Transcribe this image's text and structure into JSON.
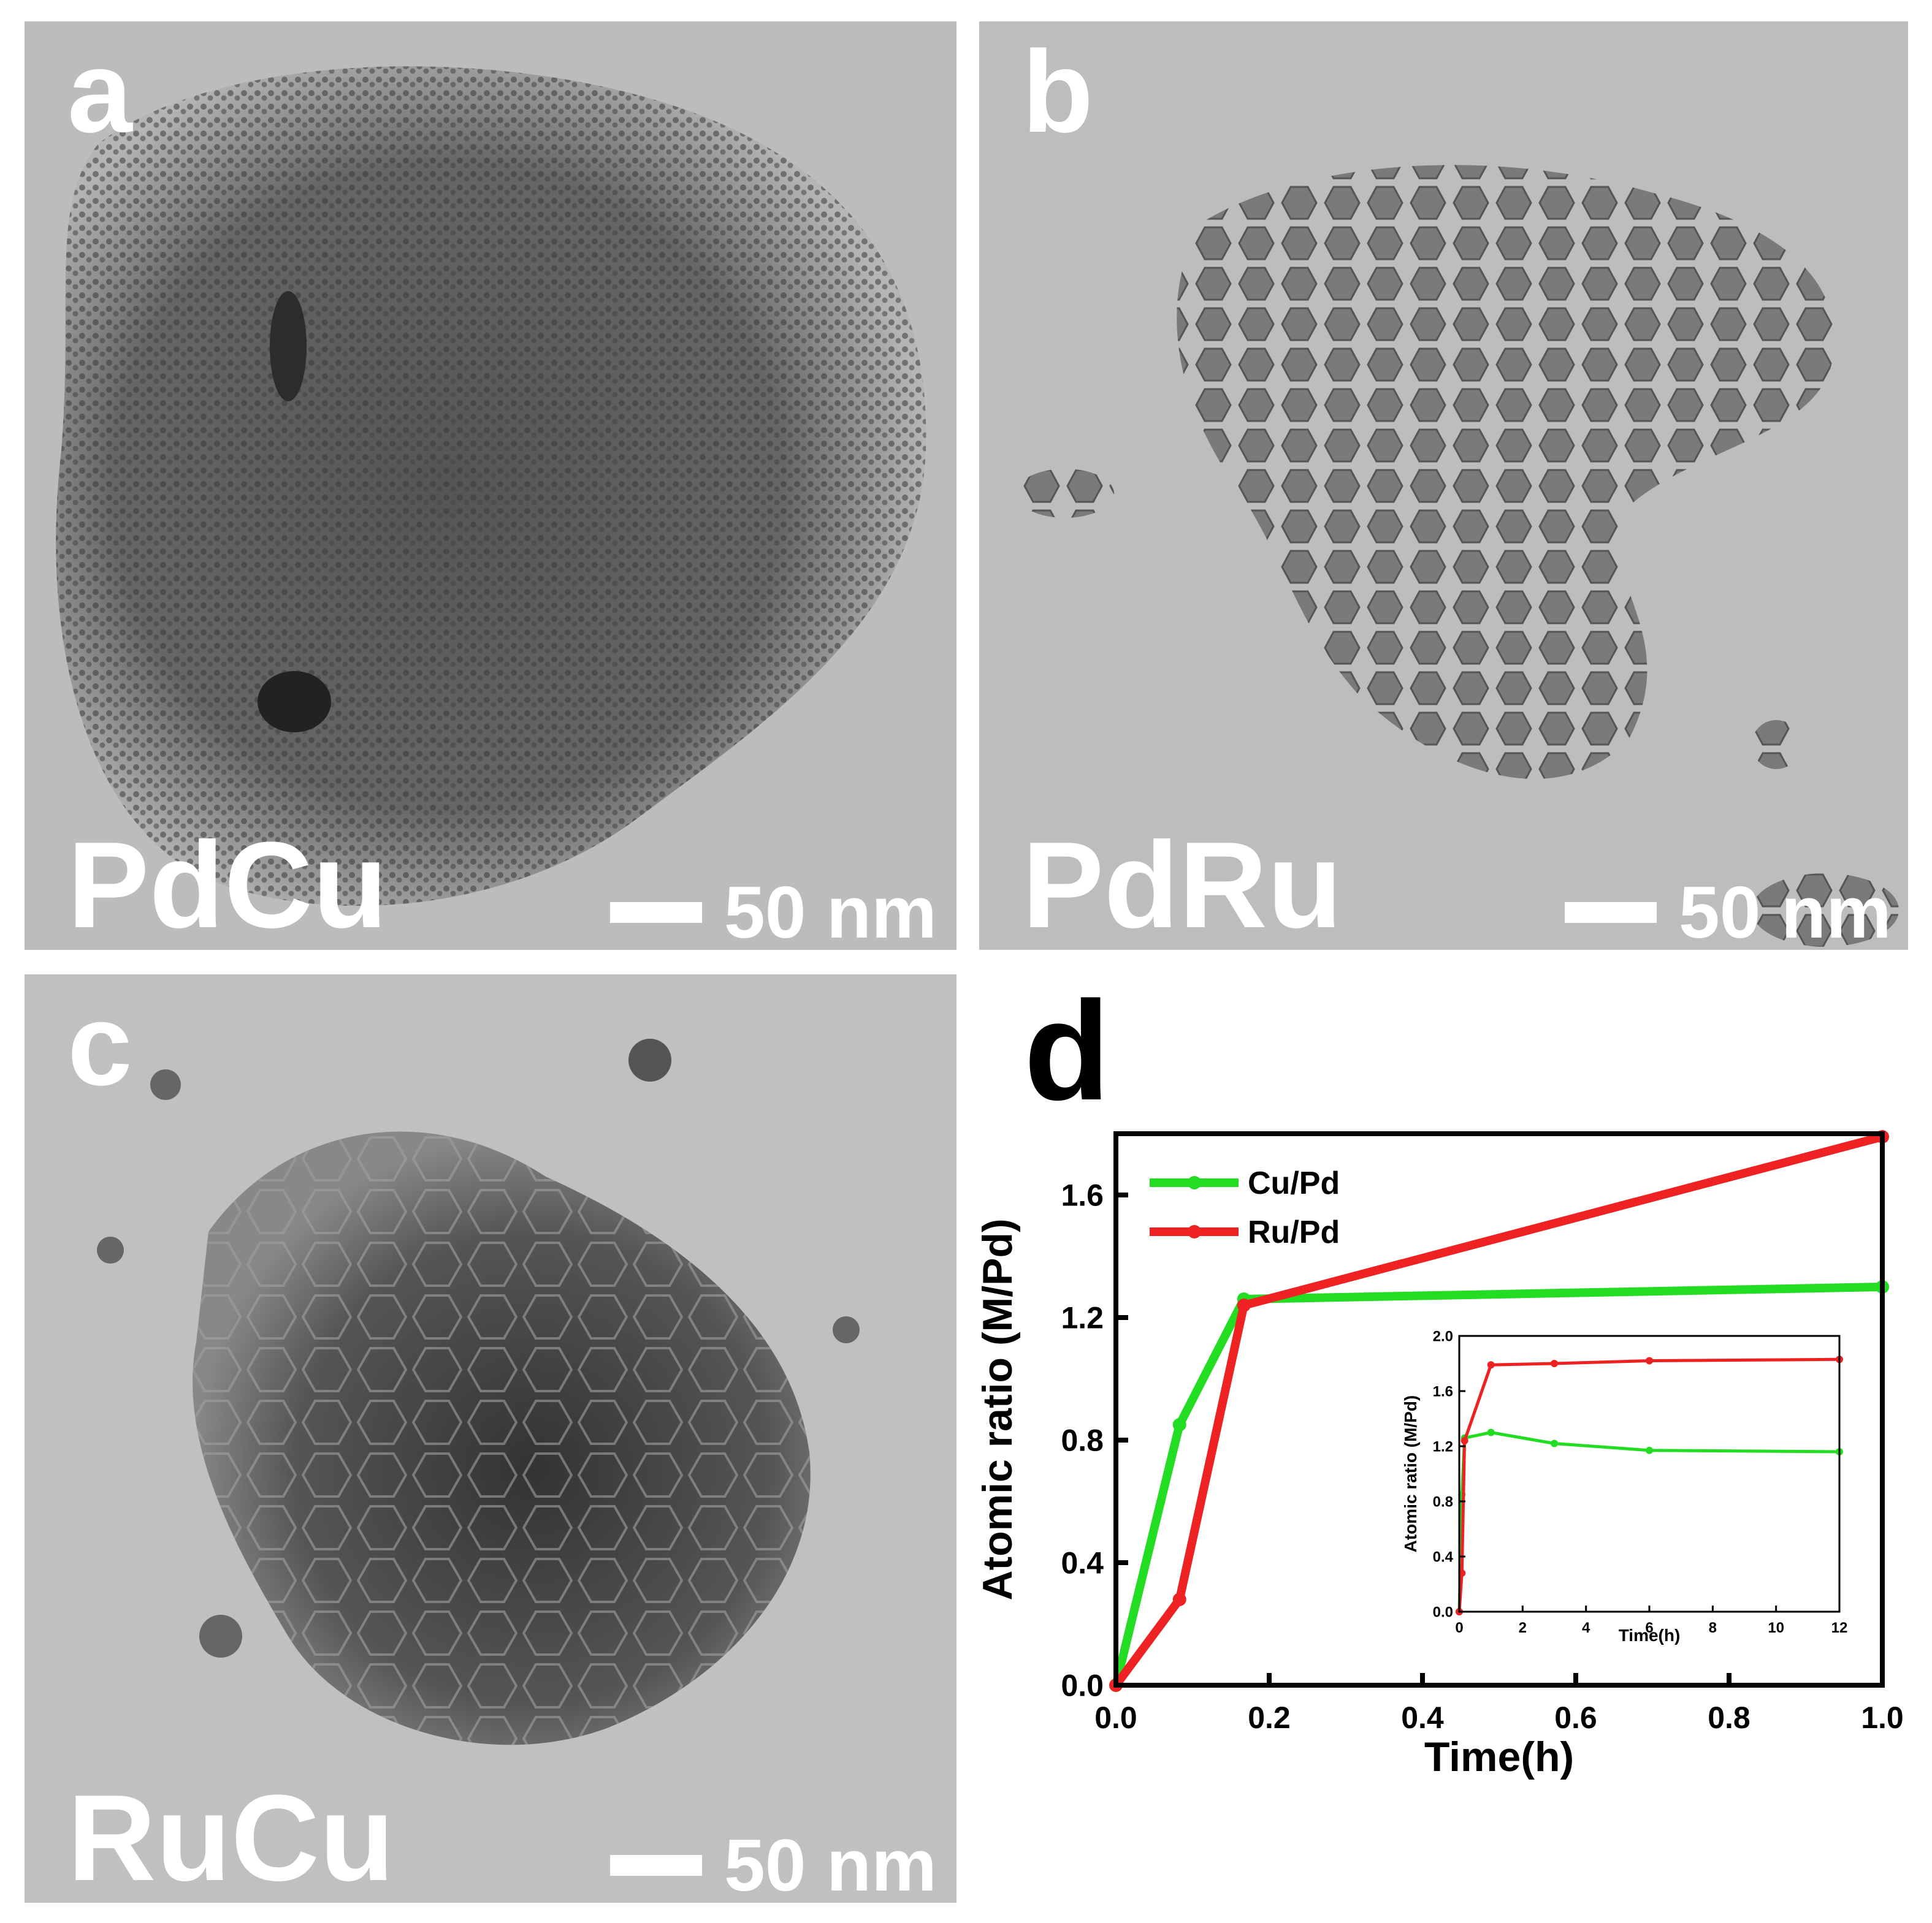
{
  "panels": {
    "a": {
      "letter": "a",
      "material": "PdCu",
      "scale": "50 nm"
    },
    "b": {
      "letter": "b",
      "material": "PdRu",
      "scale": "50 nm"
    },
    "c": {
      "letter": "c",
      "material": "RuCu",
      "scale": "50 nm"
    },
    "d": {
      "letter": "d"
    }
  },
  "colors": {
    "cu_pd": "#22dd22",
    "ru_pd": "#ee2222",
    "tem_bg": "#b9b9b9"
  },
  "chart_data": [
    {
      "type": "line",
      "xlabel": "Time(h)",
      "ylabel": "Atomic ratio (M/Pd)",
      "xlim": [
        0,
        1.0
      ],
      "ylim": [
        0,
        1.8
      ],
      "xticks": [
        "0.0",
        "0.2",
        "0.4",
        "0.6",
        "0.8",
        "1.0"
      ],
      "yticks": [
        "0.0",
        "0.4",
        "0.8",
        "1.2",
        "1.6"
      ],
      "legend_position": "top-left",
      "series": [
        {
          "name": "Cu/Pd",
          "x": [
            0,
            0.083,
            0.167,
            1.0
          ],
          "y": [
            0,
            0.85,
            1.26,
            1.3
          ]
        },
        {
          "name": "Ru/Pd",
          "x": [
            0,
            0.083,
            0.167,
            1.0
          ],
          "y": [
            0,
            0.28,
            1.24,
            1.79
          ]
        }
      ]
    },
    {
      "type": "line",
      "role": "inset",
      "xlabel": "Time(h)",
      "ylabel": "Atomic ratio (M/Pd)",
      "xlim": [
        0,
        12
      ],
      "ylim": [
        0,
        2.0
      ],
      "xticks": [
        "0",
        "2",
        "4",
        "6",
        "8",
        "10",
        "12"
      ],
      "yticks": [
        "0.0",
        "0.4",
        "0.8",
        "1.2",
        "1.6",
        "2.0"
      ],
      "series": [
        {
          "name": "Cu/Pd",
          "x": [
            0,
            0.083,
            0.167,
            1,
            3,
            6,
            12
          ],
          "y": [
            0,
            0.85,
            1.26,
            1.3,
            1.22,
            1.17,
            1.16
          ]
        },
        {
          "name": "Ru/Pd",
          "x": [
            0,
            0.083,
            0.167,
            1,
            3,
            6,
            12
          ],
          "y": [
            0,
            0.28,
            1.24,
            1.79,
            1.8,
            1.82,
            1.83
          ]
        }
      ]
    }
  ]
}
